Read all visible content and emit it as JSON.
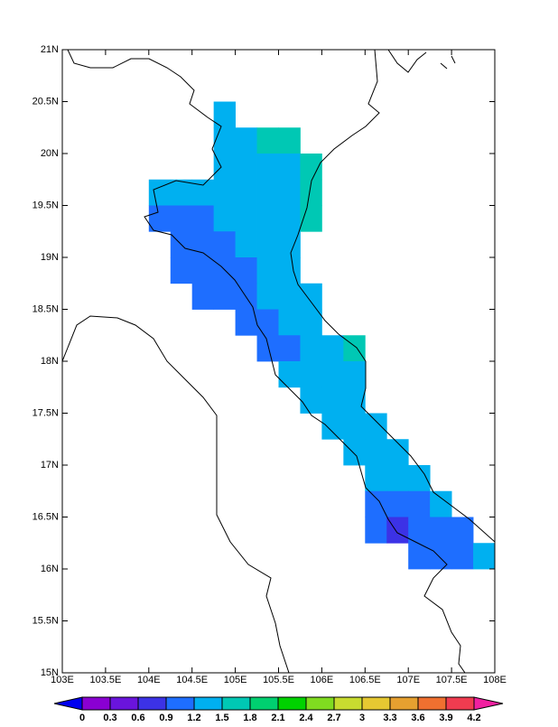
{
  "map": {
    "xlim": [
      103,
      108
    ],
    "ylim": [
      15,
      21
    ],
    "xticks": [
      {
        "value": 103,
        "label": "103E"
      },
      {
        "value": 103.5,
        "label": "103.5E"
      },
      {
        "value": 104,
        "label": "104E"
      },
      {
        "value": 104.5,
        "label": "104.5E"
      },
      {
        "value": 105,
        "label": "105E"
      },
      {
        "value": 105.5,
        "label": "105.5E"
      },
      {
        "value": 106,
        "label": "106E"
      },
      {
        "value": 106.5,
        "label": "106.5E"
      },
      {
        "value": 107,
        "label": "107E"
      },
      {
        "value": 107.5,
        "label": "107.5E"
      },
      {
        "value": 108,
        "label": "108E"
      }
    ],
    "yticks": [
      {
        "value": 15,
        "label": "15N"
      },
      {
        "value": 15.5,
        "label": "15.5N"
      },
      {
        "value": 16,
        "label": "16N"
      },
      {
        "value": 16.5,
        "label": "16.5N"
      },
      {
        "value": 17,
        "label": "17N"
      },
      {
        "value": 17.5,
        "label": "17.5N"
      },
      {
        "value": 18,
        "label": "18N"
      },
      {
        "value": 18.5,
        "label": "18.5N"
      },
      {
        "value": 19,
        "label": "19N"
      },
      {
        "value": 19.5,
        "label": "19.5N"
      },
      {
        "value": 20,
        "label": "20N"
      },
      {
        "value": 20.5,
        "label": "20.5N"
      },
      {
        "value": 21,
        "label": "21N"
      }
    ],
    "levels": [
      0,
      0.3,
      0.6,
      0.9,
      1.2,
      1.5,
      1.8,
      2.1,
      2.4,
      2.7,
      3,
      3.3,
      3.6,
      3.9,
      4.2
    ],
    "colors": [
      "#0000f0",
      "#8a00d2",
      "#6a14dc",
      "#3c32e6",
      "#1e6eff",
      "#00b0f0",
      "#00c8b4",
      "#00d070",
      "#00d200",
      "#80dc20",
      "#c8dc30",
      "#e6c832",
      "#e6a030",
      "#f07030",
      "#f03c50",
      "#f020a0"
    ],
    "cell_size": 0.25,
    "cells": {
      "lon": [
        104.875,
        104.875,
        105.125,
        105.375,
        105.625,
        104.875,
        105.125,
        105.375,
        105.625,
        105.875,
        104.125,
        104.375,
        104.625,
        104.875,
        105.125,
        105.375,
        105.625,
        105.875,
        104.125,
        104.375,
        104.625,
        104.875,
        105.125,
        105.375,
        105.625,
        105.875,
        104.375,
        104.625,
        104.875,
        105.125,
        105.375,
        105.625,
        104.375,
        104.625,
        104.875,
        105.125,
        105.375,
        105.625,
        104.625,
        104.875,
        105.125,
        105.375,
        105.625,
        105.875,
        105.125,
        105.375,
        105.625,
        105.875,
        105.375,
        105.625,
        105.875,
        106.125,
        106.375,
        105.625,
        105.875,
        106.125,
        106.375,
        105.875,
        106.125,
        106.375,
        106.125,
        106.375,
        106.625,
        106.375,
        106.625,
        106.875,
        106.625,
        106.875,
        107.125,
        106.625,
        106.875,
        107.125,
        107.375,
        106.625,
        106.875,
        107.125,
        107.375,
        107.625,
        107.125,
        107.375,
        107.625,
        107.875
      ],
      "lat": [
        20.375,
        20.125,
        20.125,
        20.125,
        20.125,
        19.875,
        19.875,
        19.875,
        19.875,
        19.875,
        19.625,
        19.625,
        19.625,
        19.625,
        19.625,
        19.625,
        19.625,
        19.625,
        19.375,
        19.375,
        19.375,
        19.375,
        19.375,
        19.375,
        19.375,
        19.375,
        19.125,
        19.125,
        19.125,
        19.125,
        19.125,
        19.125,
        18.875,
        18.875,
        18.875,
        18.875,
        18.875,
        18.875,
        18.625,
        18.625,
        18.625,
        18.625,
        18.625,
        18.625,
        18.375,
        18.375,
        18.375,
        18.375,
        18.125,
        18.125,
        18.125,
        18.125,
        18.125,
        17.875,
        17.875,
        17.875,
        17.875,
        17.625,
        17.625,
        17.625,
        17.375,
        17.375,
        17.375,
        17.125,
        17.125,
        17.125,
        16.875,
        16.875,
        16.875,
        16.625,
        16.625,
        16.625,
        16.625,
        16.375,
        16.375,
        16.375,
        16.375,
        16.375,
        16.125,
        16.125,
        16.125,
        16.125
      ],
      "values": [
        1.35,
        1.35,
        1.35,
        1.65,
        1.65,
        1.35,
        1.35,
        1.35,
        1.35,
        1.65,
        1.35,
        1.35,
        1.35,
        1.35,
        1.35,
        1.35,
        1.35,
        1.65,
        1.05,
        1.05,
        1.05,
        1.35,
        1.35,
        1.35,
        1.35,
        1.65,
        1.05,
        1.05,
        1.05,
        1.35,
        1.35,
        1.35,
        1.05,
        1.05,
        1.05,
        1.05,
        1.35,
        1.35,
        1.05,
        1.05,
        1.05,
        1.35,
        1.35,
        1.35,
        1.05,
        1.05,
        1.35,
        1.35,
        1.05,
        1.05,
        1.35,
        1.35,
        1.65,
        1.35,
        1.35,
        1.35,
        1.35,
        1.35,
        1.35,
        1.35,
        1.35,
        1.35,
        1.35,
        1.35,
        1.35,
        1.35,
        1.35,
        1.35,
        1.35,
        1.05,
        1.05,
        1.05,
        1.35,
        1.05,
        0.75,
        1.05,
        1.05,
        1.05,
        1.05,
        1.05,
        1.05,
        1.35
      ]
    }
  }
}
